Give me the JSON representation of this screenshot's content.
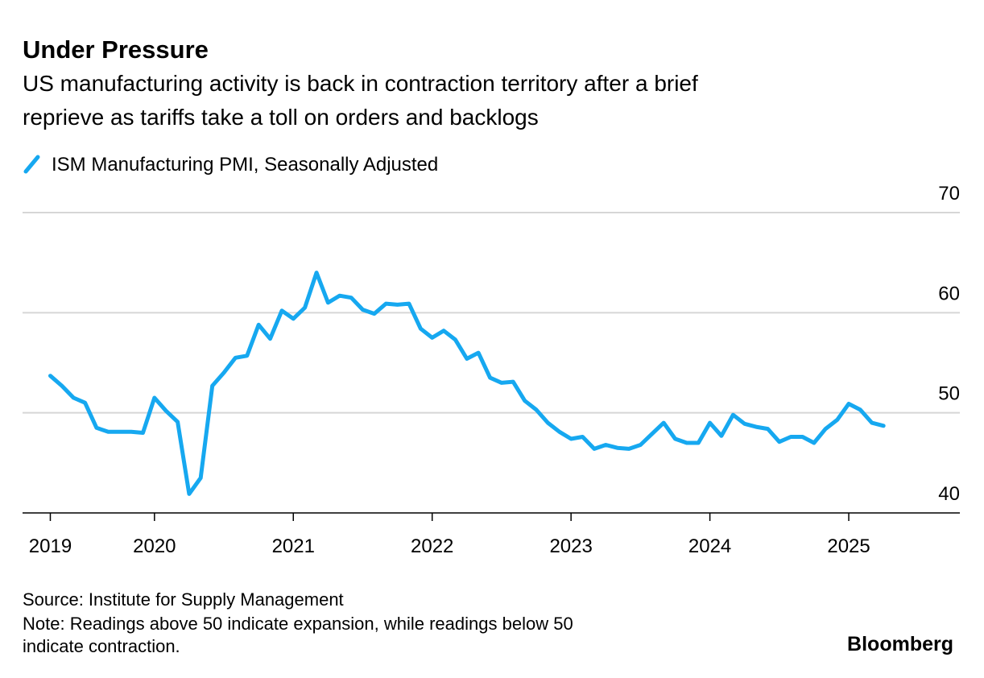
{
  "chart_data": {
    "type": "line",
    "title": "Under Pressure",
    "subtitle_lines": [
      "US manufacturing activity is back in contraction territory after a brief",
      "reprieve as tariffs take a toll on orders and backlogs"
    ],
    "source": "Source: Institute for Supply Management",
    "note_lines": [
      "Note: Readings above 50 indicate expansion, while readings below 50",
      "indicate contraction."
    ],
    "brand": "Bloomberg",
    "x": [
      2019.25,
      2019.333,
      2019.417,
      2019.5,
      2019.583,
      2019.667,
      2019.75,
      2019.833,
      2019.917,
      2020,
      2020.083,
      2020.167,
      2020.25,
      2020.333,
      2020.417,
      2020.5,
      2020.583,
      2020.667,
      2020.75,
      2020.833,
      2020.917,
      2021,
      2021.083,
      2021.167,
      2021.25,
      2021.333,
      2021.417,
      2021.5,
      2021.583,
      2021.667,
      2021.75,
      2021.833,
      2021.917,
      2022,
      2022.083,
      2022.167,
      2022.25,
      2022.333,
      2022.417,
      2022.5,
      2022.583,
      2022.667,
      2022.75,
      2022.833,
      2022.917,
      2023,
      2023.083,
      2023.167,
      2023.25,
      2023.333,
      2023.417,
      2023.5,
      2023.583,
      2023.667,
      2023.75,
      2023.833,
      2023.917,
      2024,
      2024.083,
      2024.167,
      2024.25,
      2024.333,
      2024.417,
      2024.5,
      2024.583,
      2024.667,
      2024.75,
      2024.833,
      2024.917,
      2025,
      2025.083,
      2025.167,
      2025.25
    ],
    "series": [
      {
        "name": "ISM Manufacturing PMI, Seasonally Adjusted",
        "color": "#16a8f0",
        "values": [
          53.7,
          52.7,
          51.5,
          51.0,
          48.5,
          48.1,
          48.1,
          48.1,
          48.0,
          51.5,
          50.2,
          49.1,
          41.9,
          43.5,
          52.7,
          54.0,
          55.5,
          55.7,
          58.8,
          57.4,
          60.2,
          59.4,
          60.5,
          64.0,
          61.0,
          61.7,
          61.5,
          60.3,
          59.9,
          60.9,
          60.8,
          60.9,
          58.4,
          57.5,
          58.2,
          57.3,
          55.4,
          56.0,
          53.5,
          53.0,
          53.1,
          51.2,
          50.3,
          49.0,
          48.1,
          47.4,
          47.6,
          46.4,
          46.8,
          46.5,
          46.4,
          46.8,
          47.9,
          49.0,
          47.4,
          47.0,
          47.0,
          49.0,
          47.7,
          49.8,
          48.9,
          48.6,
          48.4,
          47.1,
          47.6,
          47.6,
          47.0,
          48.4,
          49.3,
          50.9,
          50.3,
          49.0,
          48.7
        ]
      }
    ],
    "xlim": [
      2019.05,
      2025.8
    ],
    "xticks": [
      {
        "value": 2019.25,
        "label": "2019"
      },
      2020,
      2021,
      2022,
      2023,
      2024,
      2025
    ],
    "ylim": [
      40,
      70
    ],
    "yticks": [
      40,
      50,
      60,
      70
    ],
    "grid": true
  }
}
